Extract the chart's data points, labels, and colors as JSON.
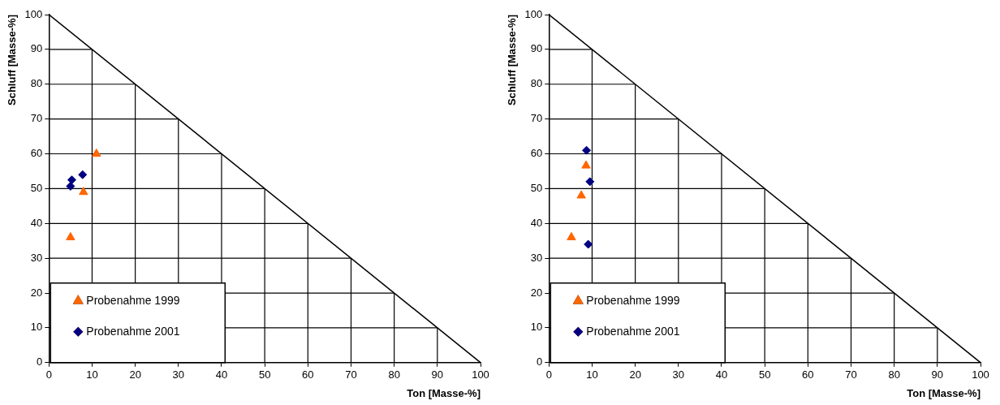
{
  "chart_data": [
    {
      "type": "scatter",
      "xlabel": "Ton [Masse-%]",
      "ylabel": "Schluff [Masse-%]",
      "xlim": [
        0,
        100
      ],
      "ylim": [
        0,
        100
      ],
      "xticks": [
        0,
        10,
        20,
        30,
        40,
        50,
        60,
        70,
        80,
        90,
        100
      ],
      "yticks": [
        0,
        10,
        20,
        30,
        40,
        50,
        60,
        70,
        80,
        90,
        100
      ],
      "grid": true,
      "legend": "bottom left",
      "series": [
        {
          "name": "Probenahme 1999",
          "color": "#ff6600",
          "marker": "triangle",
          "x": [
            11,
            8,
            5
          ],
          "values": [
            60,
            49,
            36
          ]
        },
        {
          "name": "Probenahme 2001",
          "color": "#000080",
          "marker": "diamond",
          "x": [
            7.8,
            5.3,
            5
          ],
          "values": [
            54,
            52.5,
            50.7
          ]
        },
        {
          "type": "line",
          "color": "#000000",
          "marker": "none",
          "x": [
            0,
            100
          ],
          "values": [
            100,
            0
          ]
        }
      ]
    },
    {
      "type": "scatter",
      "xlabel": "Ton [Masse-%]",
      "ylabel": "Schluff [Masse-%]",
      "xlim": [
        0,
        100
      ],
      "ylim": [
        0,
        100
      ],
      "xticks": [
        0,
        10,
        20,
        30,
        40,
        50,
        60,
        70,
        80,
        90,
        100
      ],
      "yticks": [
        0,
        10,
        20,
        30,
        40,
        50,
        60,
        70,
        80,
        90,
        100
      ],
      "grid": true,
      "legend": "bottom left",
      "series": [
        {
          "name": "Probenahme 1999",
          "color": "#ff6600",
          "marker": "triangle",
          "x": [
            8.6,
            7.5,
            5.2
          ],
          "values": [
            56.6,
            48,
            36
          ]
        },
        {
          "name": "Probenahme 2001",
          "color": "#000080",
          "marker": "diamond",
          "x": [
            8.7,
            9.5,
            9.1
          ],
          "values": [
            61,
            52,
            34
          ]
        },
        {
          "type": "line",
          "color": "#000000",
          "marker": "none",
          "x": [
            0,
            100
          ],
          "values": [
            100,
            0
          ]
        }
      ]
    }
  ]
}
